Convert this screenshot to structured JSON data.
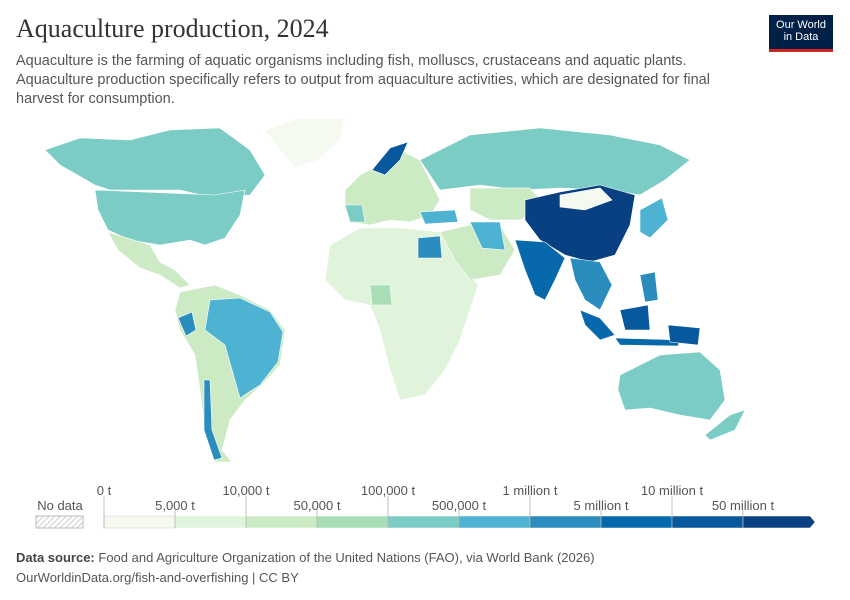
{
  "header": {
    "title": "Aquaculture production, 2024",
    "subtitle": "Aquaculture is the farming of aquatic organisms including fish, molluscs, crustaceans and aquatic plants. Aquaculture production specifically refers to output from aquaculture activities, which are designated for final harvest for consumption.",
    "logo": [
      "Our World",
      "in Data"
    ]
  },
  "legend": {
    "no_data": "No data",
    "ticks": [
      "0 t",
      "5,000 t",
      "10,000 t",
      "50,000 t",
      "100,000 t",
      "500,000 t",
      "1 million t",
      "5 million t",
      "10 million t",
      "50 million t"
    ],
    "colors": [
      "#f4faf0",
      "#e0f3db",
      "#ccebc5",
      "#a8ddb5",
      "#7bccc4",
      "#4eb3d3",
      "#2b8cbe",
      "#0868ac",
      "#08589e",
      "#084081"
    ]
  },
  "footer": {
    "source_label": "Data source:",
    "source": "Food and Agriculture Organization of the United Nations (FAO), via World Bank (2026)",
    "url": "OurWorldinData.org/fish-and-overfishing | CC BY"
  }
}
